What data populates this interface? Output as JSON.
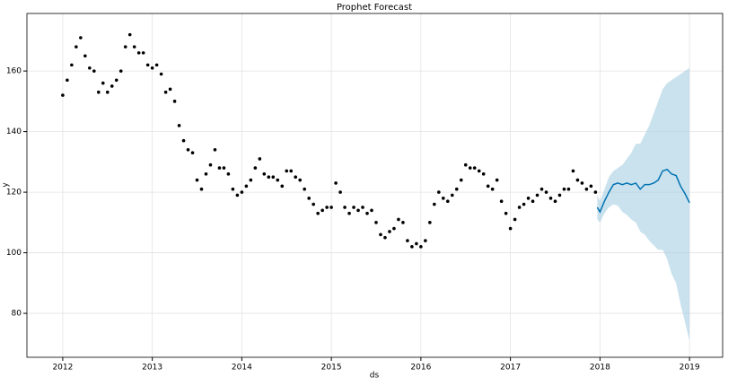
{
  "chart_data": {
    "type": "forecast",
    "title": "Prophet Forecast",
    "x_label": "ds",
    "y_label": "y",
    "xlim": [
      2011.6,
      2019.37
    ],
    "ylim": [
      65.5,
      179
    ],
    "xticks": [
      2012,
      2013,
      2014,
      2015,
      2016,
      2017,
      2018,
      2019
    ],
    "yticks": [
      80,
      100,
      120,
      140,
      160
    ],
    "grid": true,
    "observed": {
      "color": "#000000",
      "x": [
        2012.0,
        2012.05,
        2012.1,
        2012.15,
        2012.2,
        2012.25,
        2012.3,
        2012.35,
        2012.4,
        2012.45,
        2012.5,
        2012.55,
        2012.6,
        2012.65,
        2012.7,
        2012.75,
        2012.8,
        2012.85,
        2012.9,
        2012.95,
        2013.0,
        2013.05,
        2013.1,
        2013.15,
        2013.2,
        2013.25,
        2013.3,
        2013.35,
        2013.4,
        2013.45,
        2013.5,
        2013.55,
        2013.6,
        2013.65,
        2013.7,
        2013.75,
        2013.8,
        2013.85,
        2013.9,
        2013.95,
        2014.0,
        2014.05,
        2014.1,
        2014.15,
        2014.2,
        2014.25,
        2014.3,
        2014.35,
        2014.4,
        2014.45,
        2014.5,
        2014.55,
        2014.6,
        2014.65,
        2014.7,
        2014.75,
        2014.8,
        2014.85,
        2014.9,
        2014.95,
        2015.0,
        2015.05,
        2015.1,
        2015.15,
        2015.2,
        2015.25,
        2015.3,
        2015.35,
        2015.4,
        2015.45,
        2015.5,
        2015.55,
        2015.6,
        2015.65,
        2015.7,
        2015.75,
        2015.8,
        2015.85,
        2015.9,
        2015.95,
        2016.0,
        2016.05,
        2016.1,
        2016.15,
        2016.2,
        2016.25,
        2016.3,
        2016.35,
        2016.4,
        2016.45,
        2016.5,
        2016.55,
        2016.6,
        2016.65,
        2016.7,
        2016.75,
        2016.8,
        2016.85,
        2016.9,
        2016.95,
        2017.0,
        2017.05,
        2017.1,
        2017.15,
        2017.2,
        2017.25,
        2017.3,
        2017.35,
        2017.4,
        2017.45,
        2017.5,
        2017.55,
        2017.6,
        2017.65,
        2017.7,
        2017.75,
        2017.8,
        2017.85,
        2017.9,
        2017.95
      ],
      "values": [
        152,
        157,
        162,
        168,
        171,
        165,
        161,
        160,
        153,
        156,
        153,
        155,
        157,
        160,
        168,
        172,
        168,
        166,
        166,
        162,
        161,
        162,
        159,
        153,
        154,
        150,
        142,
        137,
        134,
        133,
        124,
        121,
        126,
        129,
        134,
        128,
        128,
        126,
        121,
        119,
        120,
        122,
        124,
        128,
        131,
        126,
        125,
        125,
        124,
        122,
        127,
        127,
        125,
        124,
        121,
        118,
        116,
        113,
        114,
        115,
        115,
        123,
        120,
        115,
        113,
        115,
        114,
        115,
        113,
        114,
        110,
        106,
        105,
        107,
        108,
        111,
        110,
        104,
        102,
        103,
        102,
        104,
        110,
        116,
        120,
        118,
        117,
        119,
        121,
        124,
        129,
        128,
        128,
        127,
        126,
        122,
        121,
        124,
        117,
        113,
        108,
        111,
        115,
        116,
        118,
        117,
        119,
        121,
        120,
        118,
        117,
        119,
        121,
        121,
        127,
        124,
        123,
        121,
        122,
        120
      ]
    },
    "forecast": {
      "color": "#0072b2",
      "band_color": "#a6cee3",
      "x": [
        2017.97,
        2018.0,
        2018.05,
        2018.1,
        2018.15,
        2018.2,
        2018.25,
        2018.3,
        2018.35,
        2018.4,
        2018.45,
        2018.5,
        2018.55,
        2018.6,
        2018.65,
        2018.7,
        2018.75,
        2018.8,
        2018.85,
        2018.9,
        2018.95,
        2019.0
      ],
      "values": [
        115,
        113.5,
        117,
        120,
        122.5,
        123,
        122.5,
        123,
        122.5,
        123,
        121,
        122.5,
        122.5,
        123,
        124,
        127,
        127.5,
        126,
        125.5,
        122,
        119.5,
        116.5
      ],
      "lower": [
        111,
        110,
        113,
        115,
        116,
        115.5,
        113.5,
        112.5,
        111,
        110,
        107,
        106,
        104,
        102.5,
        101,
        101,
        98,
        93,
        90,
        83,
        77,
        71
      ],
      "upper": [
        119,
        117,
        121,
        125,
        127,
        128,
        129,
        131,
        133,
        136,
        136,
        139,
        142,
        146,
        150,
        154,
        156,
        157,
        158,
        159,
        160,
        161
      ]
    }
  }
}
